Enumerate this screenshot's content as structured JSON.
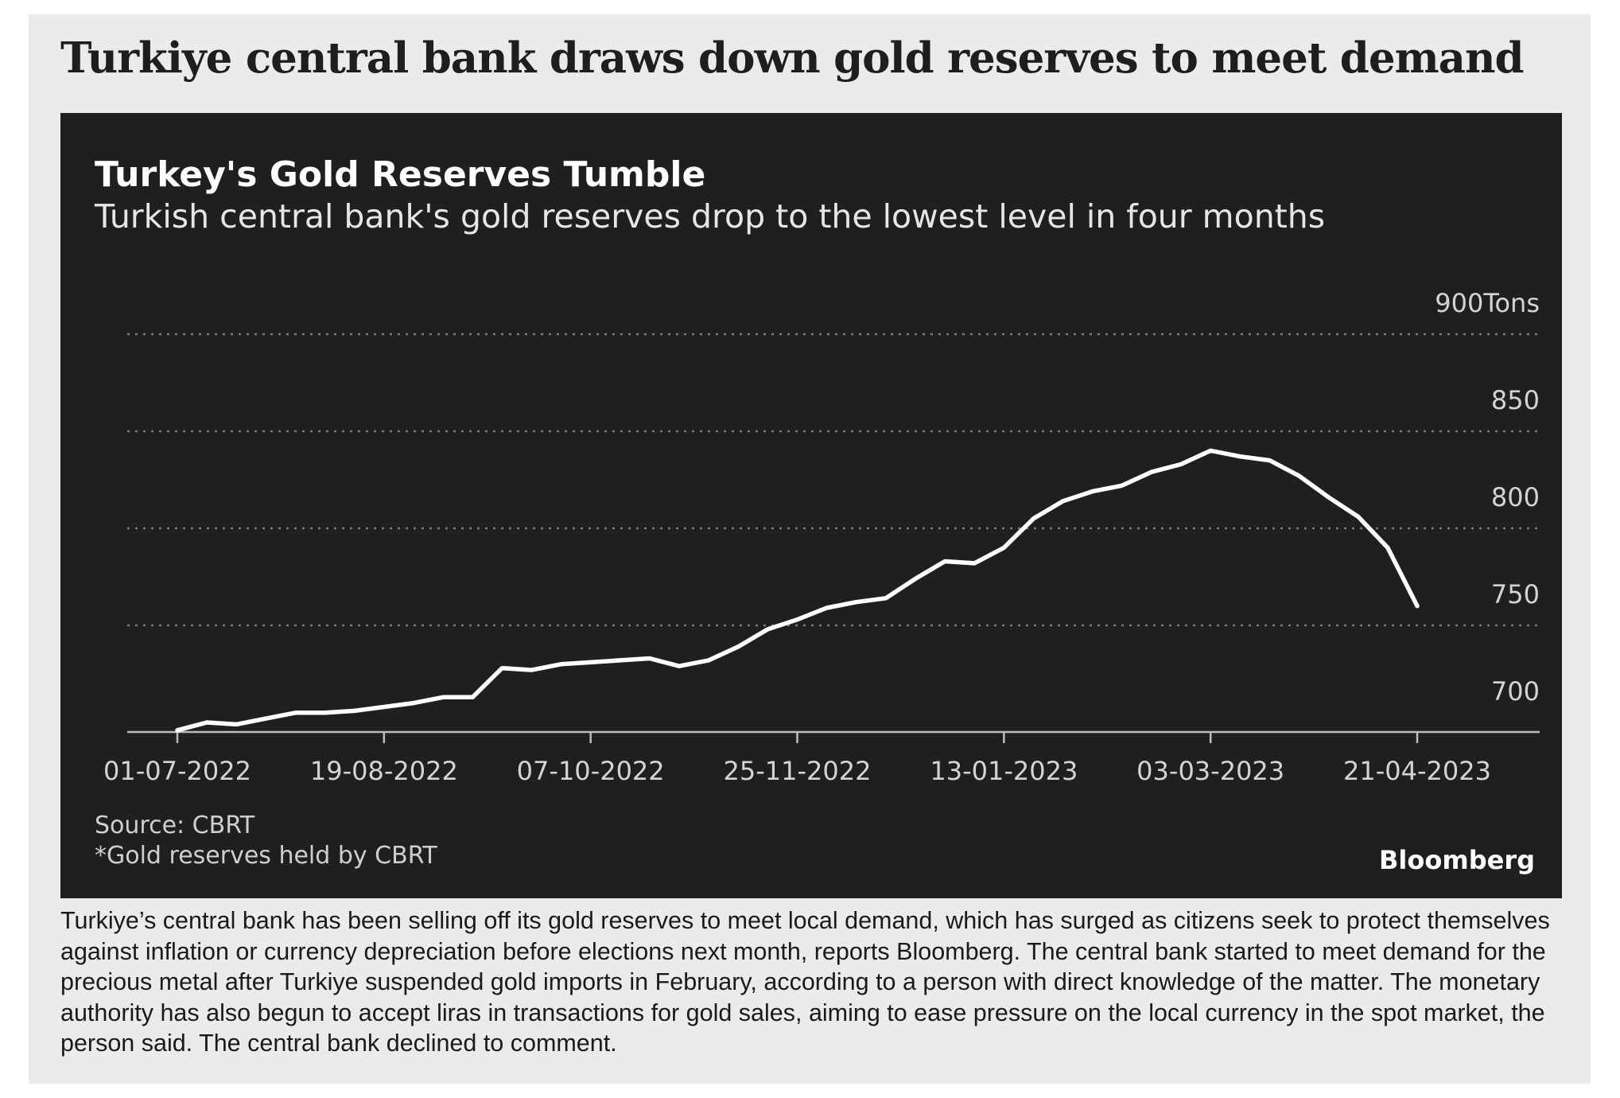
{
  "headline": "Turkiye central bank draws down gold reserves to meet demand",
  "chart_data": {
    "type": "line",
    "title": "Turkey's Gold Reserves Tumble",
    "subtitle": "Turkish central bank's gold reserves drop to the lowest level in four months",
    "xlabel": "",
    "ylabel": "",
    "y_unit": "Tons",
    "ylim": [
      690,
      900
    ],
    "y_ticks": [
      700,
      750,
      800,
      850,
      900
    ],
    "y_tick_labels": [
      "700",
      "750",
      "800",
      "850",
      "900Tons"
    ],
    "x_ticks": [
      "01-07-2022",
      "19-08-2022",
      "07-10-2022",
      "25-11-2022",
      "13-01-2023",
      "03-03-2023",
      "21-04-2023"
    ],
    "grid": true,
    "color": "#ffffff",
    "series": [
      {
        "x": [
          "01-07-2022",
          "08-07-2022",
          "15-07-2022",
          "22-07-2022",
          "29-07-2022",
          "05-08-2022",
          "12-08-2022",
          "19-08-2022",
          "26-08-2022",
          "02-09-2022",
          "09-09-2022",
          "16-09-2022",
          "23-09-2022",
          "30-09-2022",
          "07-10-2022",
          "14-10-2022",
          "21-10-2022",
          "28-10-2022",
          "04-11-2022",
          "11-11-2022",
          "18-11-2022",
          "25-11-2022",
          "02-12-2022",
          "09-12-2022",
          "16-12-2022",
          "23-12-2022",
          "30-12-2022",
          "06-01-2023",
          "13-01-2023",
          "20-01-2023",
          "27-01-2023",
          "03-02-2023",
          "10-02-2023",
          "17-02-2023",
          "24-02-2023",
          "03-03-2023",
          "10-03-2023",
          "17-03-2023",
          "24-03-2023",
          "31-03-2023",
          "07-04-2023",
          "14-04-2023",
          "21-04-2023"
        ],
        "values": [
          696,
          700,
          699,
          702,
          705,
          705,
          706,
          708,
          710,
          713,
          713,
          728,
          727,
          730,
          731,
          732,
          733,
          729,
          732,
          739,
          748,
          753,
          759,
          762,
          764,
          774,
          783,
          782,
          790,
          805,
          814,
          819,
          822,
          829,
          833,
          840,
          837,
          835,
          827,
          816,
          806,
          790,
          760
        ]
      }
    ]
  },
  "source": "Source: CBRT",
  "footnote": "*Gold reserves held by CBRT",
  "brand": "Bloomberg",
  "body": "Turkiye’s central bank has been selling off its gold reserves to meet local demand, which has surged as citizens seek to protect themselves against inflation or currency depreciation before elections next month, reports Bloomberg. The central bank started to meet demand for the precious metal after Turkiye suspended gold imports in February, according to a person with direct knowledge of the matter. The monetary authority has also begun to accept liras in transactions for gold sales, aiming to ease pressure on the local currency in the spot market, the person said. The central bank declined to comment."
}
